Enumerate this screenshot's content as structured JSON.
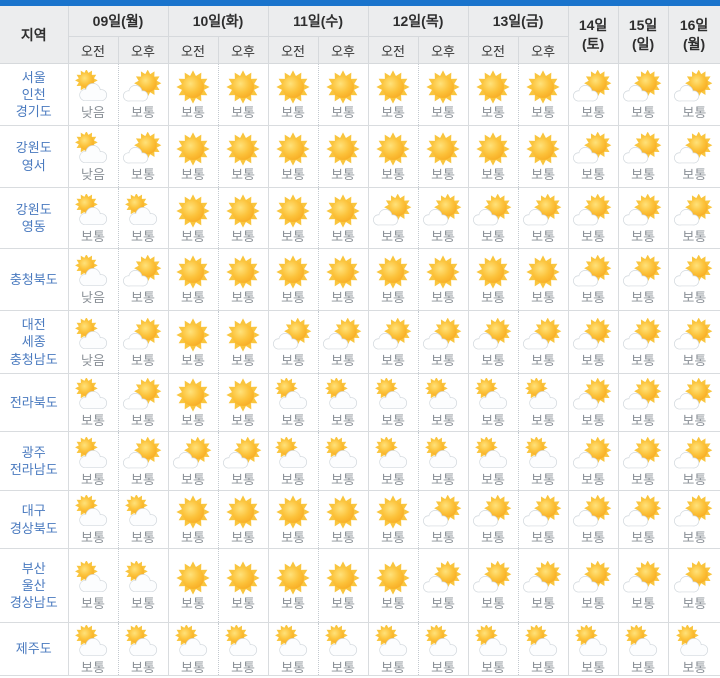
{
  "colors": {
    "accent_bar": "#1a74cc",
    "header_bg": "#ecedee",
    "region_text": "#4a7abf",
    "status_text": "#8a9097",
    "sun_core": "#f7a921",
    "sun_ray": "#f9c53e"
  },
  "table": {
    "region_header": "지역",
    "am_label": "오전",
    "pm_label": "오후",
    "days": [
      {
        "label": "09일(월)",
        "split": true
      },
      {
        "label": "10일(화)",
        "split": true
      },
      {
        "label": "11일(수)",
        "split": true
      },
      {
        "label": "12일(목)",
        "split": true
      },
      {
        "label": "13일(금)",
        "split": true
      },
      {
        "label": "14일",
        "sub": "(토)",
        "split": false
      },
      {
        "label": "15일",
        "sub": "(일)",
        "split": false
      },
      {
        "label": "16일",
        "sub": "(월)",
        "split": false
      }
    ],
    "rows": [
      {
        "region": [
          "서울",
          "인천",
          "경기도"
        ],
        "icons": [
          "cloud-sun",
          "sun-cloud",
          "sunny",
          "sunny",
          "sunny",
          "sunny",
          "sunny",
          "sunny",
          "sunny",
          "sunny",
          "sun-cloud",
          "sun-cloud",
          "sun-cloud"
        ],
        "labels": [
          "낮음",
          "보통",
          "보통",
          "보통",
          "보통",
          "보통",
          "보통",
          "보통",
          "보통",
          "보통",
          "보통",
          "보통",
          "보통"
        ]
      },
      {
        "region": [
          "강원도",
          "영서"
        ],
        "icons": [
          "cloud-sun",
          "sun-cloud",
          "sunny",
          "sunny",
          "sunny",
          "sunny",
          "sunny",
          "sunny",
          "sunny",
          "sunny",
          "sun-cloud",
          "sun-cloud",
          "sun-cloud"
        ],
        "labels": [
          "낮음",
          "보통",
          "보통",
          "보통",
          "보통",
          "보통",
          "보통",
          "보통",
          "보통",
          "보통",
          "보통",
          "보통",
          "보통"
        ]
      },
      {
        "region": [
          "강원도",
          "영동"
        ],
        "icons": [
          "cloud-sun",
          "cloud-sun",
          "sunny",
          "sunny",
          "sunny",
          "sunny",
          "sun-cloud",
          "sun-cloud",
          "sun-cloud",
          "sun-cloud",
          "sun-cloud",
          "sun-cloud",
          "sun-cloud"
        ],
        "labels": [
          "보통",
          "보통",
          "보통",
          "보통",
          "보통",
          "보통",
          "보통",
          "보통",
          "보통",
          "보통",
          "보통",
          "보통",
          "보통"
        ]
      },
      {
        "region": [
          "충청북도"
        ],
        "icons": [
          "cloud-sun",
          "sun-cloud",
          "sunny",
          "sunny",
          "sunny",
          "sunny",
          "sunny",
          "sunny",
          "sunny",
          "sunny",
          "sun-cloud",
          "sun-cloud",
          "sun-cloud"
        ],
        "labels": [
          "낮음",
          "보통",
          "보통",
          "보통",
          "보통",
          "보통",
          "보통",
          "보통",
          "보통",
          "보통",
          "보통",
          "보통",
          "보통"
        ]
      },
      {
        "region": [
          "대전",
          "세종",
          "충청남도"
        ],
        "icons": [
          "cloud-sun",
          "sun-cloud",
          "sunny",
          "sunny",
          "sun-cloud",
          "sun-cloud",
          "sun-cloud",
          "sun-cloud",
          "sun-cloud",
          "sun-cloud",
          "sun-cloud",
          "sun-cloud",
          "sun-cloud"
        ],
        "labels": [
          "낮음",
          "보통",
          "보통",
          "보통",
          "보통",
          "보통",
          "보통",
          "보통",
          "보통",
          "보통",
          "보통",
          "보통",
          "보통"
        ]
      },
      {
        "region": [
          "전라북도"
        ],
        "icons": [
          "cloud-sun",
          "sun-cloud",
          "sunny",
          "sunny",
          "cloud-sun",
          "cloud-sun",
          "cloud-sun",
          "cloud-sun",
          "cloud-sun",
          "cloud-sun",
          "sun-cloud",
          "sun-cloud",
          "sun-cloud"
        ],
        "labels": [
          "보통",
          "보통",
          "보통",
          "보통",
          "보통",
          "보통",
          "보통",
          "보통",
          "보통",
          "보통",
          "보통",
          "보통",
          "보통"
        ]
      },
      {
        "region": [
          "광주",
          "전라남도"
        ],
        "icons": [
          "cloud-sun",
          "sun-cloud",
          "sun-cloud",
          "sun-cloud",
          "cloud-sun",
          "cloud-sun",
          "cloud-sun",
          "cloud-sun",
          "cloud-sun",
          "cloud-sun",
          "sun-cloud",
          "sun-cloud",
          "sun-cloud"
        ],
        "labels": [
          "보통",
          "보통",
          "보통",
          "보통",
          "보통",
          "보통",
          "보통",
          "보통",
          "보통",
          "보통",
          "보통",
          "보통",
          "보통"
        ]
      },
      {
        "region": [
          "대구",
          "경상북도"
        ],
        "icons": [
          "cloud-sun",
          "cloud-sun",
          "sunny",
          "sunny",
          "sunny",
          "sunny",
          "sunny",
          "sun-cloud",
          "sun-cloud",
          "sun-cloud",
          "sun-cloud",
          "sun-cloud",
          "sun-cloud"
        ],
        "labels": [
          "보통",
          "보통",
          "보통",
          "보통",
          "보통",
          "보통",
          "보통",
          "보통",
          "보통",
          "보통",
          "보통",
          "보통",
          "보통"
        ]
      },
      {
        "region": [
          "부산",
          "울산",
          "경상남도"
        ],
        "icons": [
          "cloud-sun",
          "cloud-sun",
          "sunny",
          "sunny",
          "sunny",
          "sunny",
          "sunny",
          "sun-cloud",
          "sun-cloud",
          "sun-cloud",
          "sun-cloud",
          "sun-cloud",
          "sun-cloud"
        ],
        "labels": [
          "보통",
          "보통",
          "보통",
          "보통",
          "보통",
          "보통",
          "보통",
          "보통",
          "보통",
          "보통",
          "보통",
          "보통",
          "보통"
        ]
      },
      {
        "region": [
          "제주도"
        ],
        "icons": [
          "cloud-sun",
          "cloud-sun",
          "cloud-sun",
          "cloud-sun",
          "cloud-sun",
          "cloud-sun",
          "cloud-sun",
          "cloud-sun",
          "cloud-sun",
          "cloud-sun",
          "cloud-sun",
          "cloud-sun",
          "cloud-sun"
        ],
        "labels": [
          "보통",
          "보통",
          "보통",
          "보통",
          "보통",
          "보통",
          "보통",
          "보통",
          "보통",
          "보통",
          "보통",
          "보통",
          "보통"
        ]
      }
    ]
  }
}
